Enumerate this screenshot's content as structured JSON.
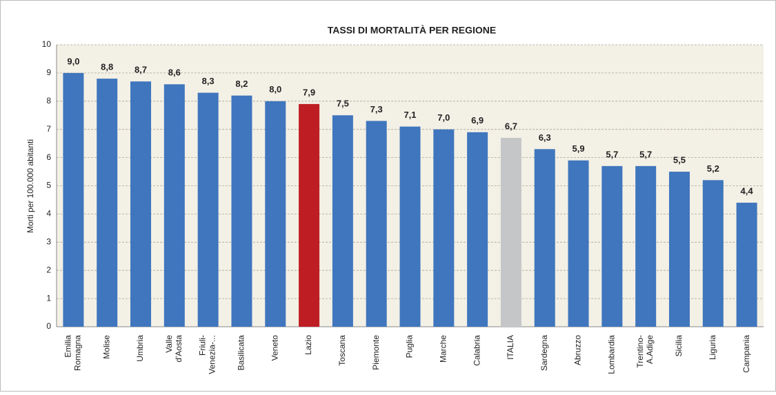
{
  "chart_data": {
    "type": "bar",
    "title": "TASSI DI MORTALITÀ PER REGIONE",
    "y_label": "Morti per 100.000 abitanti",
    "categories": [
      "Emilia\nRomagna",
      "Molise",
      "Umbria",
      "Valle\nd'Aosta",
      "Friuli-\nVenezia-...",
      "Basilicata",
      "Veneto",
      "Lazio",
      "Toscana",
      "Piemonte",
      "Puglia",
      "Marche",
      "Calabria",
      "ITALIA",
      "Sardegna",
      "Abruzzo",
      "Lombardia",
      "Trentino-\nA.Adige",
      "Sicilia",
      "Liguria",
      "Campania"
    ],
    "values": [
      9.0,
      8.8,
      8.7,
      8.6,
      8.3,
      8.2,
      8.0,
      7.9,
      7.5,
      7.3,
      7.1,
      7.0,
      6.9,
      6.7,
      6.3,
      5.9,
      5.7,
      5.7,
      5.5,
      5.2,
      4.4
    ],
    "value_labels": [
      "9,0",
      "8,8",
      "8,7",
      "8,6",
      "8,3",
      "8,2",
      "8,0",
      "7,9",
      "7,5",
      "7,3",
      "7,1",
      "7,0",
      "6,9",
      "6,7",
      "6,3",
      "5,9",
      "5,7",
      "5,7",
      "5,5",
      "5,2",
      "4,4"
    ],
    "colors": [
      "#3f76bd",
      "#3f76bd",
      "#3f76bd",
      "#3f76bd",
      "#3f76bd",
      "#3f76bd",
      "#3f76bd",
      "#be1e23",
      "#3f76bd",
      "#3f76bd",
      "#3f76bd",
      "#3f76bd",
      "#3f76bd",
      "#c4c6c8",
      "#3f76bd",
      "#3f76bd",
      "#3f76bd",
      "#3f76bd",
      "#3f76bd",
      "#3f76bd",
      "#3f76bd"
    ],
    "ylim": [
      0,
      10
    ],
    "yticks": [
      0,
      1,
      2,
      3,
      4,
      5,
      6,
      7,
      8,
      9,
      10
    ],
    "grid": true
  }
}
